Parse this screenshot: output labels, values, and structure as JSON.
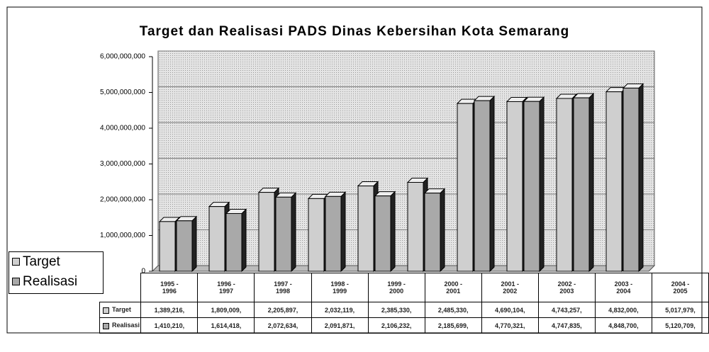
{
  "chart_data": {
    "type": "bar3d",
    "title": "Target dan Realisasi PADS Dinas Kebersihan Kota Semarang",
    "categories": [
      "1995 - 1996",
      "1996 - 1997",
      "1997 - 1998",
      "1998 - 1999",
      "1999 - 2000",
      "2000 - 2001",
      "2001 - 2002",
      "2002 - 2003",
      "2003 - 2004",
      "2004 - 2005"
    ],
    "series": [
      {
        "name": "Target",
        "color": "#cfcfcf",
        "values": [
          1389216000,
          1809009000,
          2205897000,
          2032119000,
          2385330000,
          2485330000,
          4690104000,
          4743257000,
          4832000000,
          5017979000
        ],
        "value_labels": [
          "1,389,216,",
          "1,809,009,",
          "2,205,897,",
          "2,032,119,",
          "2,385,330,",
          "2,485,330,",
          "4,690,104,",
          "4,743,257,",
          "4,832,000,",
          "5,017,979,"
        ]
      },
      {
        "name": "Realisasi",
        "color": "#a9a9a9",
        "values": [
          1410210000,
          1614418000,
          2072634000,
          2091871000,
          2106232000,
          2185699000,
          4770321000,
          4747835000,
          4848700000,
          5120709000
        ],
        "value_labels": [
          "1,410,210,",
          "1,614,418,",
          "2,072,634,",
          "2,091,871,",
          "2,106,232,",
          "2,185,699,",
          "4,770,321,",
          "4,747,835,",
          "4,848,700,",
          "5,120,709,"
        ]
      }
    ],
    "ylim": [
      0,
      6000000000
    ],
    "yticks": [
      0,
      {
        "value": 1000000000,
        "label": "1,000,000,000"
      },
      {
        "value": 2000000000,
        "label": "2,000,000,000"
      },
      {
        "value": 3000000000,
        "label": "3,000,000,000"
      },
      {
        "value": 4000000000,
        "label": "4,000,000,000"
      },
      {
        "value": 5000000000,
        "label": "5,000,000,000"
      },
      {
        "value": 6000000000,
        "label": "6,000,000,000"
      }
    ],
    "grid": true,
    "legend": "left"
  }
}
